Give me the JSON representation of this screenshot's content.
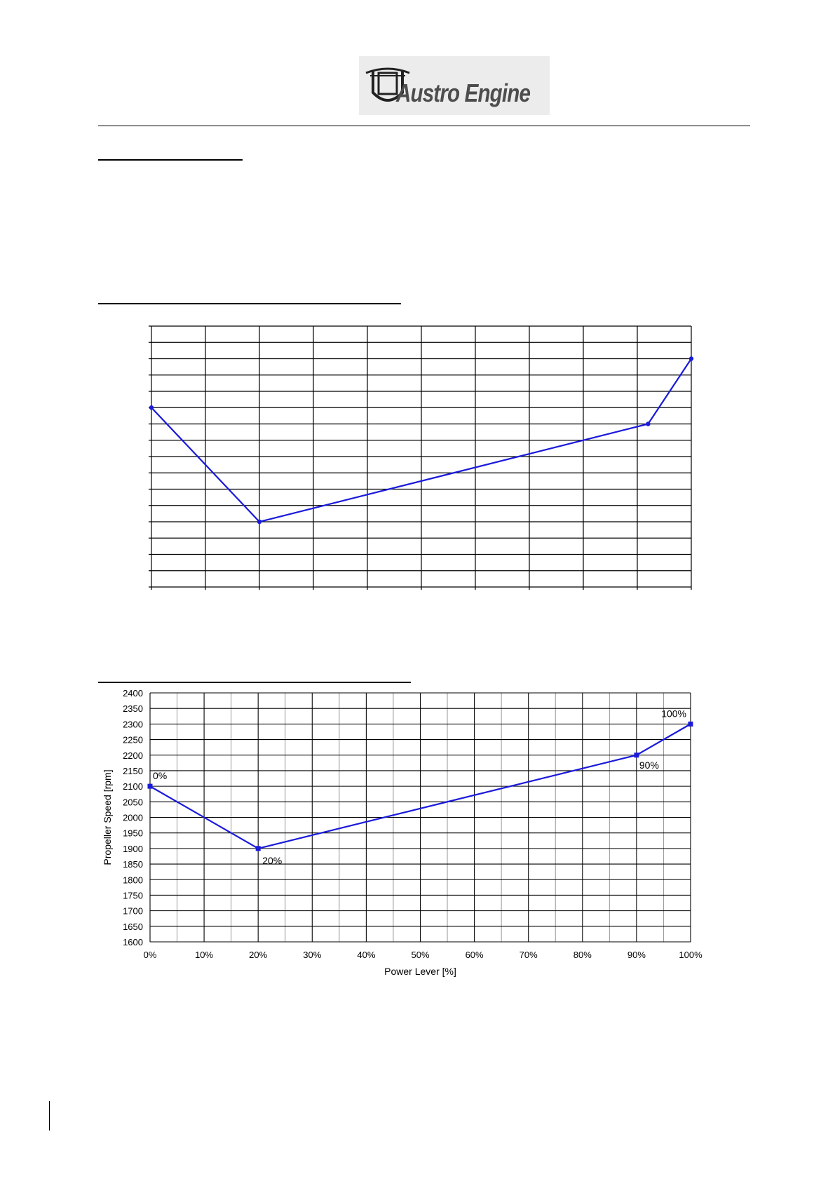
{
  "header": {
    "logo_text": "Austro Engine"
  },
  "colors": {
    "series": "#1a1adb",
    "grid": "#000000",
    "minor_grid": "#9a9a9a"
  },
  "chart_data": [
    {
      "type": "line",
      "title": "",
      "xlabel": "",
      "ylabel": "",
      "grid": true,
      "x_range": [
        0,
        100
      ],
      "y_range": [
        1600,
        2400
      ],
      "y_ticks_count": 16,
      "series": [
        {
          "x": [
            0,
            20,
            92,
            100
          ],
          "values": [
            2150,
            1800,
            2100,
            2300
          ]
        }
      ]
    },
    {
      "type": "line",
      "title": "",
      "xlabel": "Power Lever [%]",
      "ylabel": "Propeller Speed [rpm]",
      "grid": true,
      "x_ticks": [
        "0%",
        "10%",
        "20%",
        "30%",
        "40%",
        "50%",
        "60%",
        "70%",
        "80%",
        "90%",
        "100%"
      ],
      "y_ticks": [
        2400,
        2350,
        2300,
        2250,
        2200,
        2150,
        2100,
        2050,
        2000,
        1950,
        1900,
        1850,
        1800,
        1750,
        1700,
        1650,
        1600
      ],
      "ylim": [
        1600,
        2400
      ],
      "xlim": [
        0,
        100
      ],
      "series": [
        {
          "x": [
            0,
            20,
            90,
            100
          ],
          "values": [
            2100,
            1900,
            2200,
            2300
          ],
          "point_labels": [
            "0%",
            "20%",
            "90%",
            "100%"
          ]
        }
      ]
    }
  ]
}
